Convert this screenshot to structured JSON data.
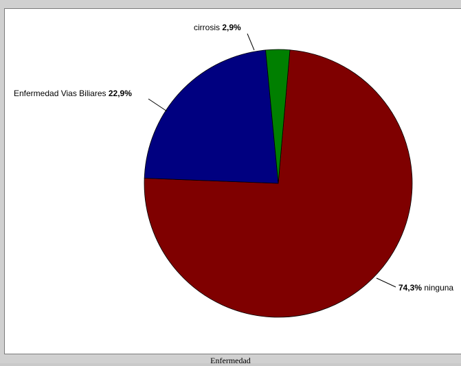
{
  "chart_data": {
    "type": "pie",
    "xlabel": "Enfermedad",
    "slices": [
      {
        "category": "ninguna",
        "value": 74.3,
        "label_pct": "74,3%",
        "label_name": "ninguna",
        "color": "#7f0000",
        "label_layout": "pct-first"
      },
      {
        "category": "Enfermedad Vias Biliares",
        "value": 22.9,
        "label_pct": "22,9%",
        "label_name": "Enfermedad Vias Biliares",
        "color": "#000080",
        "label_layout": "name-first"
      },
      {
        "category": "cirrosis",
        "value": 2.9,
        "label_pct": "2,9%",
        "label_name": "cirrosis",
        "color": "#007f00",
        "label_layout": "name-first"
      }
    ]
  }
}
